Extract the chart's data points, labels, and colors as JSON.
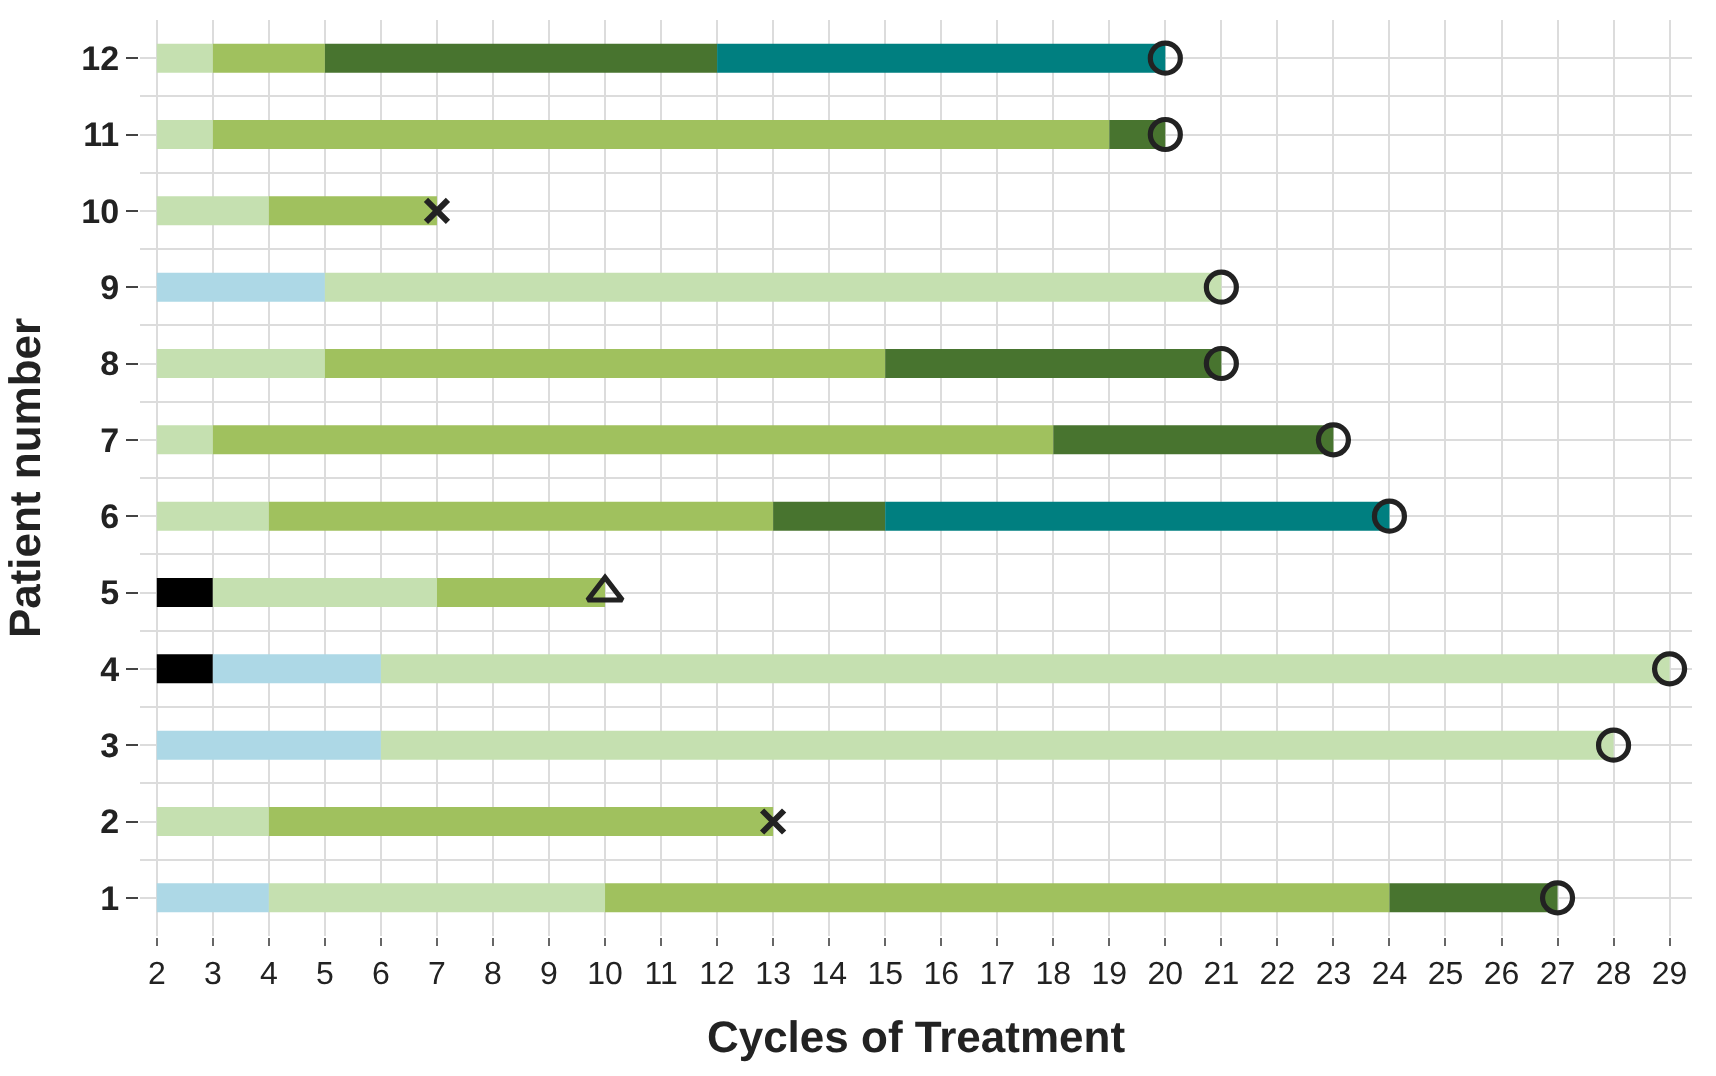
{
  "chart_data": {
    "type": "bar",
    "orientation": "horizontal",
    "xlabel": "Cycles of Treatment",
    "ylabel": "Patient number",
    "categories": [
      "12",
      "11",
      "10",
      "9",
      "8",
      "7",
      "6",
      "5",
      "4",
      "3",
      "2",
      "1"
    ],
    "xlim": [
      1.7,
      29.4
    ],
    "xticks": [
      2,
      3,
      4,
      5,
      6,
      7,
      8,
      9,
      10,
      11,
      12,
      13,
      14,
      15,
      16,
      17,
      18,
      19,
      20,
      21,
      22,
      23,
      24,
      25,
      26,
      27,
      28,
      29
    ],
    "grid": true,
    "series": [
      {
        "color": "#000000",
        "base": [
          null,
          null,
          null,
          null,
          null,
          null,
          null,
          2,
          2,
          null,
          null,
          null
        ],
        "values": [
          null,
          null,
          null,
          null,
          null,
          null,
          null,
          1,
          1,
          null,
          null,
          null
        ]
      },
      {
        "color": "#add8e6",
        "base": [
          null,
          null,
          null,
          2,
          null,
          null,
          null,
          null,
          3,
          2,
          null,
          2
        ],
        "values": [
          null,
          null,
          null,
          3,
          null,
          null,
          null,
          null,
          3,
          4,
          null,
          2
        ]
      },
      {
        "color": "#c5e0b0",
        "base": [
          2,
          2,
          2,
          5,
          2,
          2,
          2,
          3,
          6,
          6,
          2,
          4
        ],
        "values": [
          1,
          1,
          2,
          16,
          3,
          1,
          2,
          4,
          23,
          22,
          2,
          6
        ]
      },
      {
        "color": "#a0c15e",
        "base": [
          3,
          3,
          4,
          null,
          5,
          3,
          4,
          7,
          null,
          null,
          4,
          10
        ],
        "values": [
          2,
          16,
          3,
          null,
          10,
          15,
          9,
          3,
          null,
          null,
          9,
          14
        ]
      },
      {
        "color": "#48742f",
        "base": [
          5,
          19,
          null,
          null,
          15,
          18,
          13,
          null,
          null,
          null,
          null,
          24
        ],
        "values": [
          7,
          1,
          null,
          null,
          6,
          5,
          2,
          null,
          null,
          null,
          null,
          3
        ]
      },
      {
        "color": "#007f80",
        "base": [
          12,
          null,
          null,
          null,
          null,
          null,
          15,
          null,
          null,
          null,
          null,
          null
        ],
        "values": [
          8,
          null,
          null,
          null,
          null,
          null,
          9,
          null,
          null,
          null,
          null,
          null
        ]
      },
      {
        "type": "scatter",
        "marker": "circle",
        "color": "#222222",
        "values": [
          20,
          20,
          null,
          21,
          21,
          23,
          24,
          null,
          29,
          28,
          null,
          27
        ]
      },
      {
        "type": "scatter",
        "marker": "cross",
        "color": "#222222",
        "values": [
          null,
          null,
          7,
          null,
          null,
          null,
          null,
          null,
          null,
          null,
          13,
          null
        ]
      },
      {
        "type": "scatter",
        "marker": "triangle",
        "color": "#222222",
        "values": [
          null,
          null,
          null,
          null,
          null,
          null,
          null,
          10,
          null,
          null,
          null,
          null
        ]
      }
    ]
  }
}
